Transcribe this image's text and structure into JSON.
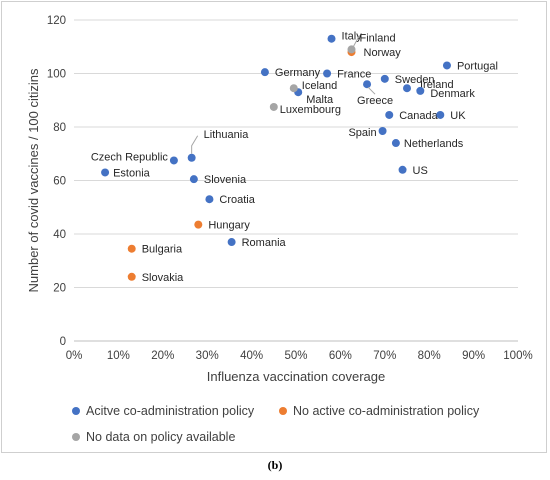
{
  "chart_data": {
    "type": "scatter",
    "xlabel": "Influenza vaccination coverage",
    "ylabel": "Number of covid vaccines / 100 citizins",
    "xlim": [
      0,
      1
    ],
    "ylim": [
      0,
      120
    ],
    "x_ticks": [
      "0%",
      "10%",
      "20%",
      "30%",
      "40%",
      "50%",
      "60%",
      "70%",
      "80%",
      "90%",
      "100%"
    ],
    "y_ticks": [
      "0",
      "20",
      "40",
      "60",
      "80",
      "100",
      "120"
    ],
    "grid": true,
    "legend_position": "bottom",
    "series": [
      {
        "name": "Acitve co-administration policy",
        "color": "#4472C4",
        "points": [
          {
            "label": "Italy",
            "x": 0.58,
            "y": 113
          },
          {
            "label": "Portugal",
            "x": 0.84,
            "y": 103
          },
          {
            "label": "Germany",
            "x": 0.43,
            "y": 100.5
          },
          {
            "label": "France",
            "x": 0.57,
            "y": 100
          },
          {
            "label": "Sweden",
            "x": 0.7,
            "y": 98
          },
          {
            "label": "Greece",
            "x": 0.66,
            "y": 96
          },
          {
            "label": "Ireland",
            "x": 0.75,
            "y": 94.5
          },
          {
            "label": "Denmark",
            "x": 0.78,
            "y": 93.5
          },
          {
            "label": "Malta",
            "x": 0.505,
            "y": 93
          },
          {
            "label": "Canada",
            "x": 0.71,
            "y": 84.5
          },
          {
            "label": "UK",
            "x": 0.825,
            "y": 84.5
          },
          {
            "label": "Spain",
            "x": 0.695,
            "y": 78.5
          },
          {
            "label": "Netherlands",
            "x": 0.725,
            "y": 74
          },
          {
            "label": "Lithuania",
            "x": 0.265,
            "y": 68.5
          },
          {
            "label": "Czech Republic",
            "x": 0.225,
            "y": 67.5
          },
          {
            "label": "US",
            "x": 0.74,
            "y": 64
          },
          {
            "label": "Estonia",
            "x": 0.07,
            "y": 63
          },
          {
            "label": "Slovenia",
            "x": 0.27,
            "y": 60.5
          },
          {
            "label": "Croatia",
            "x": 0.305,
            "y": 53
          },
          {
            "label": "Romania",
            "x": 0.355,
            "y": 37
          }
        ]
      },
      {
        "name": "No active co-administration policy",
        "color": "#ED7D31",
        "points": [
          {
            "label": "Norway",
            "x": 0.625,
            "y": 108
          },
          {
            "label": "Hungary",
            "x": 0.28,
            "y": 43.5
          },
          {
            "label": "Bulgaria",
            "x": 0.13,
            "y": 34.5
          },
          {
            "label": "Slovakia",
            "x": 0.13,
            "y": 24
          }
        ]
      },
      {
        "name": "No data on policy available",
        "color": "#A5A5A5",
        "points": [
          {
            "label": "Finland",
            "x": 0.625,
            "y": 109
          },
          {
            "label": "Iceland",
            "x": 0.495,
            "y": 94.5
          },
          {
            "label": "Luxembourg",
            "x": 0.45,
            "y": 87.5
          }
        ]
      }
    ]
  },
  "panel_label": "(b)"
}
